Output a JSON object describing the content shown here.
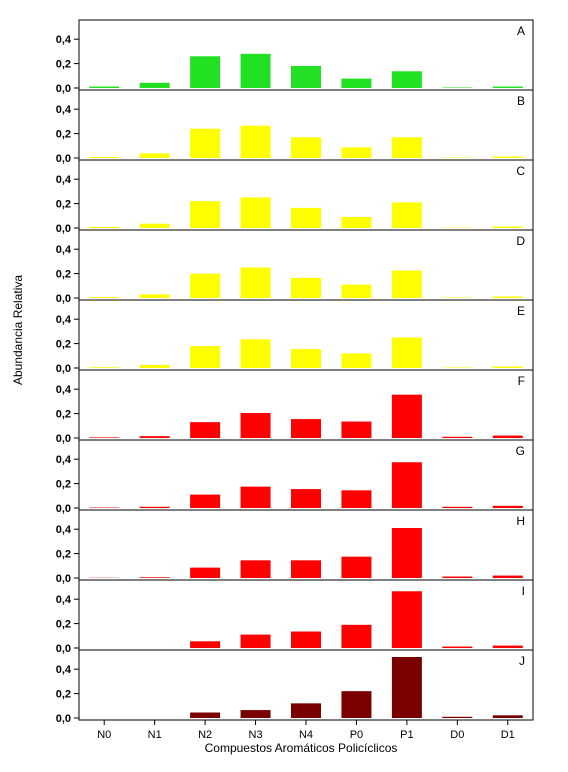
{
  "chart_data": {
    "type": "bar",
    "xlabel": "Compuestos Aromáticos Policíclicos",
    "ylabel": "Abundancia Relativa",
    "categories": [
      "N0",
      "N1",
      "N2",
      "N3",
      "N4",
      "P0",
      "P1",
      "D0",
      "D1"
    ],
    "ylim": [
      0,
      0.5
    ],
    "ytick_labels": [
      "0,0",
      "0,2",
      "0,4"
    ],
    "yticks": [
      0,
      0.2,
      0.4
    ],
    "grid": false,
    "panels": [
      {
        "label": "A",
        "color": "#22e022",
        "values": [
          0.012,
          0.042,
          0.26,
          0.28,
          0.18,
          0.077,
          0.137,
          0.004,
          0.012
        ]
      },
      {
        "label": "B",
        "color": "#ffff00",
        "values": [
          0.008,
          0.038,
          0.24,
          0.265,
          0.17,
          0.087,
          0.17,
          0.003,
          0.012
        ]
      },
      {
        "label": "C",
        "color": "#ffff00",
        "values": [
          0.008,
          0.035,
          0.22,
          0.25,
          0.165,
          0.09,
          0.21,
          0.003,
          0.012
        ]
      },
      {
        "label": "D",
        "color": "#ffff00",
        "values": [
          0.007,
          0.03,
          0.2,
          0.25,
          0.165,
          0.11,
          0.225,
          0.004,
          0.012
        ]
      },
      {
        "label": "E",
        "color": "#ffff00",
        "values": [
          0.006,
          0.025,
          0.18,
          0.235,
          0.155,
          0.12,
          0.25,
          0.004,
          0.012
        ]
      },
      {
        "label": "F",
        "color": "#ff0000",
        "values": [
          0.005,
          0.015,
          0.13,
          0.205,
          0.155,
          0.135,
          0.355,
          0.01,
          0.02
        ]
      },
      {
        "label": "G",
        "color": "#ff0000",
        "values": [
          0.004,
          0.01,
          0.11,
          0.175,
          0.155,
          0.145,
          0.375,
          0.01,
          0.018
        ]
      },
      {
        "label": "H",
        "color": "#ff0000",
        "values": [
          0.002,
          0.006,
          0.085,
          0.145,
          0.145,
          0.175,
          0.41,
          0.012,
          0.02
        ]
      },
      {
        "label": "I",
        "color": "#ff0000",
        "values": [
          0.0,
          0.0,
          0.055,
          0.11,
          0.135,
          0.19,
          0.465,
          0.012,
          0.02
        ]
      },
      {
        "label": "J",
        "color": "#7a0000",
        "values": [
          0.0,
          0.0,
          0.045,
          0.065,
          0.12,
          0.22,
          0.5,
          0.01,
          0.022
        ]
      }
    ]
  }
}
